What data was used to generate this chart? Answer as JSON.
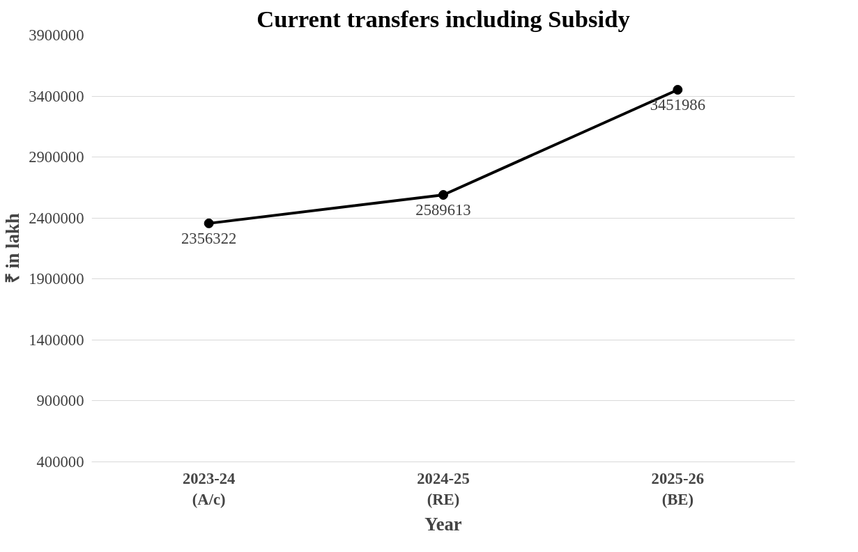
{
  "chart_data": {
    "type": "line",
    "title": "Current transfers including Subsidy",
    "xlabel": "Year",
    "ylabel": "₹ in lakh",
    "categories": [
      "2023-24\n(A/c)",
      "2024-25\n(RE)",
      "2025-26\n(BE)"
    ],
    "series": [
      {
        "color": "#000000",
        "values": [
          2356322,
          2589613,
          3451986
        ]
      }
    ],
    "ylim": [
      400000,
      3900000
    ],
    "yticks": [
      400000,
      900000,
      1400000,
      1900000,
      2400000,
      2900000,
      3400000,
      3900000
    ],
    "grid": "y",
    "data_labels": true,
    "marker": "circle",
    "line_style": "solid"
  }
}
